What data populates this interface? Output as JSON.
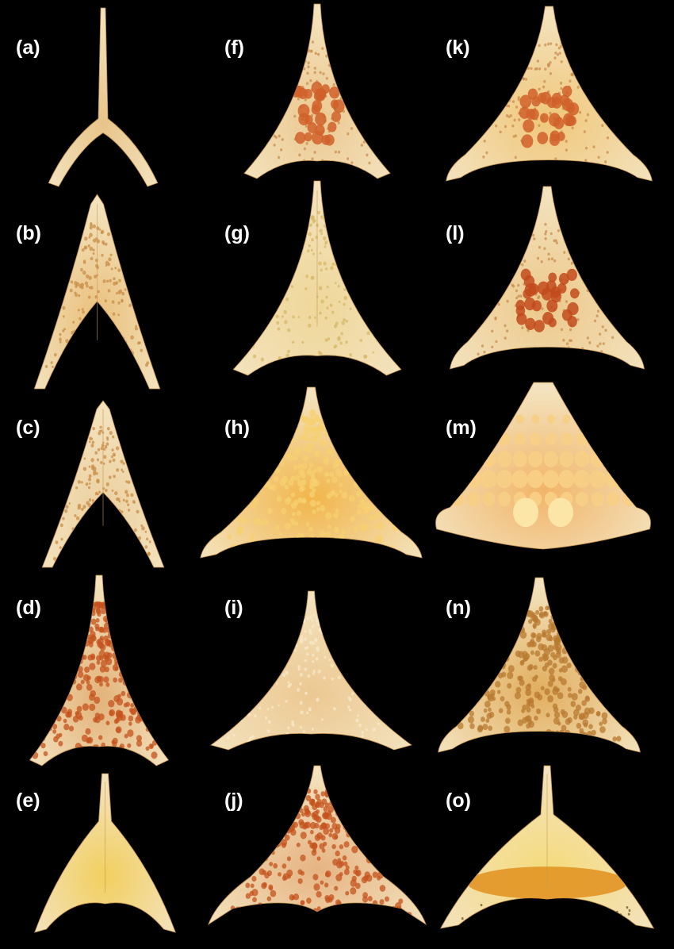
{
  "figure": {
    "background": "#000000",
    "panels": [
      {
        "label": "(a)",
        "shape": "forked-spine",
        "fill": "#e8c48a",
        "pits": "none",
        "pit_color": "#d08a4a"
      },
      {
        "label": "(b)",
        "shape": "arrow-notched",
        "fill": "#e9bf7a",
        "pits": "fine",
        "pit_color": "#c98d4a"
      },
      {
        "label": "(c)",
        "shape": "arrow-notched",
        "fill": "#ecd0a0",
        "pits": "fine",
        "pit_color": "#c98d4a"
      },
      {
        "label": "(d)",
        "shape": "triangle-concave",
        "fill": "#e3b27a",
        "pits": "dense",
        "pit_color": "#c4531e"
      },
      {
        "label": "(e)",
        "shape": "heart-spine",
        "fill": "#f2cf5e",
        "pits": "none",
        "pit_color": "#e0a82e"
      },
      {
        "label": "(f)",
        "shape": "triangle-concave",
        "fill": "#ecc890",
        "pits": "central",
        "pit_color": "#d0602a"
      },
      {
        "label": "(g)",
        "shape": "triangle-concave",
        "fill": "#efd79a",
        "pits": "fine",
        "pit_color": "#d7b86a"
      },
      {
        "label": "(h)",
        "shape": "triangle-wide",
        "fill": "#f2b54a",
        "pits": "dense",
        "pit_color": "#f5d070"
      },
      {
        "label": "(i)",
        "shape": "triangle-concave",
        "fill": "#ecc892",
        "pits": "pale",
        "pit_color": "#f6e7c6"
      },
      {
        "label": "(j)",
        "shape": "notched-wide",
        "fill": "#e6b483",
        "pits": "dense",
        "pit_color": "#c4531e"
      },
      {
        "label": "(k)",
        "shape": "triangle-wide",
        "fill": "#f0c77a",
        "pits": "central",
        "pit_color": "#d0602a"
      },
      {
        "label": "(l)",
        "shape": "triangle-wide",
        "fill": "#ecc88a",
        "pits": "central",
        "pit_color": "#c24a1c"
      },
      {
        "label": "(m)",
        "shape": "trapezoid",
        "fill": "#f2b468",
        "pits": "large",
        "pit_color": "#f7cf85"
      },
      {
        "label": "(n)",
        "shape": "triangle-wide",
        "fill": "#e1ae5f",
        "pits": "dense",
        "pit_color": "#b87a30"
      },
      {
        "label": "(o)",
        "shape": "heart-spine",
        "fill": "#f4db7c",
        "pits": "band",
        "pit_color": "#e0901e"
      }
    ]
  }
}
